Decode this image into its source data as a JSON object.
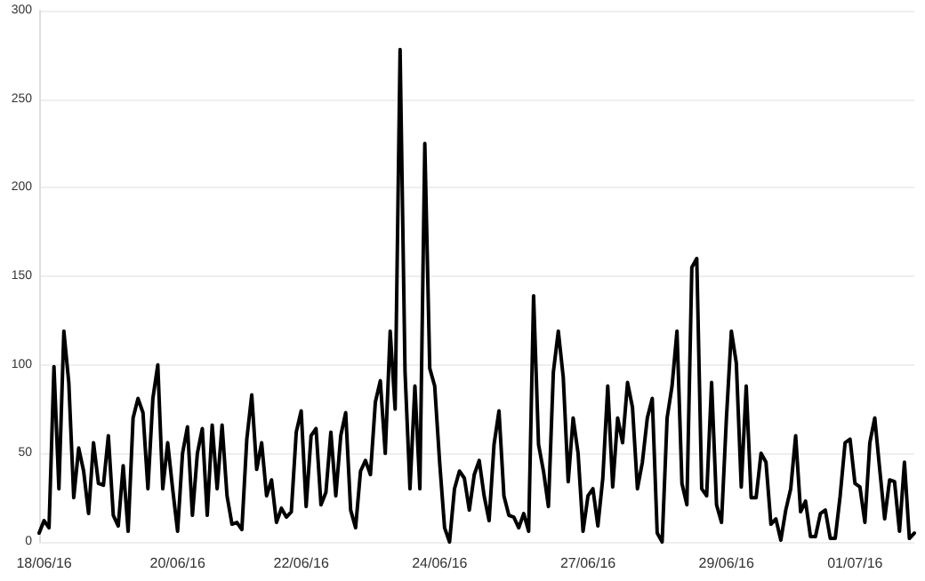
{
  "chart_data": {
    "type": "line",
    "categories": [
      null,
      "18/06/16",
      null,
      null,
      null,
      null,
      null,
      null,
      null,
      null,
      null,
      null,
      null,
      null,
      null,
      null,
      null,
      null,
      null,
      null,
      null,
      null,
      null,
      null,
      null,
      null,
      null,
      null,
      "20/06/16",
      null,
      null,
      null,
      null,
      null,
      null,
      null,
      null,
      null,
      null,
      null,
      null,
      null,
      null,
      null,
      null,
      null,
      null,
      null,
      null,
      null,
      null,
      null,
      null,
      "22/06/16",
      null,
      null,
      null,
      null,
      null,
      null,
      null,
      null,
      null,
      null,
      null,
      null,
      null,
      null,
      null,
      null,
      null,
      null,
      null,
      null,
      null,
      null,
      null,
      null,
      null,
      null,
      null,
      "24/06/16",
      null,
      null,
      null,
      null,
      null,
      null,
      null,
      null,
      null,
      null,
      null,
      null,
      null,
      null,
      null,
      null,
      null,
      null,
      null,
      null,
      null,
      null,
      null,
      null,
      null,
      null,
      null,
      null,
      null,
      "27/06/16",
      null,
      null,
      null,
      null,
      null,
      null,
      null,
      null,
      null,
      null,
      null,
      null,
      null,
      null,
      null,
      null,
      null,
      null,
      null,
      null,
      null,
      null,
      null,
      null,
      null,
      null,
      null,
      "29/06/16",
      null,
      null,
      null,
      null,
      null,
      null,
      null,
      null,
      null,
      null,
      null,
      null,
      null,
      null,
      null,
      null,
      null,
      null,
      null,
      null,
      null,
      null,
      null,
      null,
      null,
      "01/07/16",
      null,
      null,
      null,
      null,
      null,
      null,
      null,
      null,
      null,
      null,
      null,
      null
    ],
    "series": [
      {
        "color": "#000000",
        "values": [
          5,
          12,
          8,
          99,
          30,
          119,
          90,
          25,
          53,
          40,
          16,
          56,
          33,
          32,
          60,
          15,
          9,
          43,
          6,
          70,
          81,
          73,
          30,
          81,
          100,
          30,
          56,
          30,
          6,
          50,
          65,
          15,
          50,
          64,
          15,
          66,
          30,
          66,
          26,
          10,
          11,
          7,
          58,
          83,
          41,
          56,
          26,
          35,
          11,
          19,
          14,
          17,
          62,
          74,
          20,
          60,
          64,
          21,
          28,
          62,
          26,
          60,
          73,
          18,
          8,
          40,
          46,
          38,
          79,
          91,
          50,
          119,
          75,
          278,
          96,
          30,
          88,
          30,
          225,
          98,
          88,
          45,
          8,
          0,
          30,
          40,
          36,
          18,
          38,
          46,
          26,
          12,
          55,
          74,
          26,
          15,
          14,
          8,
          16,
          6,
          139,
          55,
          40,
          20,
          96,
          119,
          93,
          34,
          70,
          50,
          6,
          26,
          30,
          9,
          36,
          88,
          31,
          70,
          56,
          90,
          76,
          30,
          45,
          70,
          81,
          5,
          0,
          70,
          88,
          119,
          33,
          21,
          155,
          160,
          30,
          26,
          90,
          21,
          11,
          70,
          119,
          101,
          31,
          88,
          25,
          25,
          50,
          45,
          10,
          13,
          1,
          18,
          30,
          60,
          17,
          23,
          3,
          3,
          16,
          18,
          2,
          2,
          26,
          56,
          58,
          33,
          31,
          11,
          56,
          70,
          41,
          13,
          35,
          34,
          6,
          45,
          2,
          5
        ]
      }
    ],
    "ylim": [
      0,
      300
    ],
    "yticks": [
      0,
      50,
      100,
      150,
      200,
      250,
      300
    ],
    "grid": "y",
    "marker": "none",
    "line_style": "solid"
  }
}
